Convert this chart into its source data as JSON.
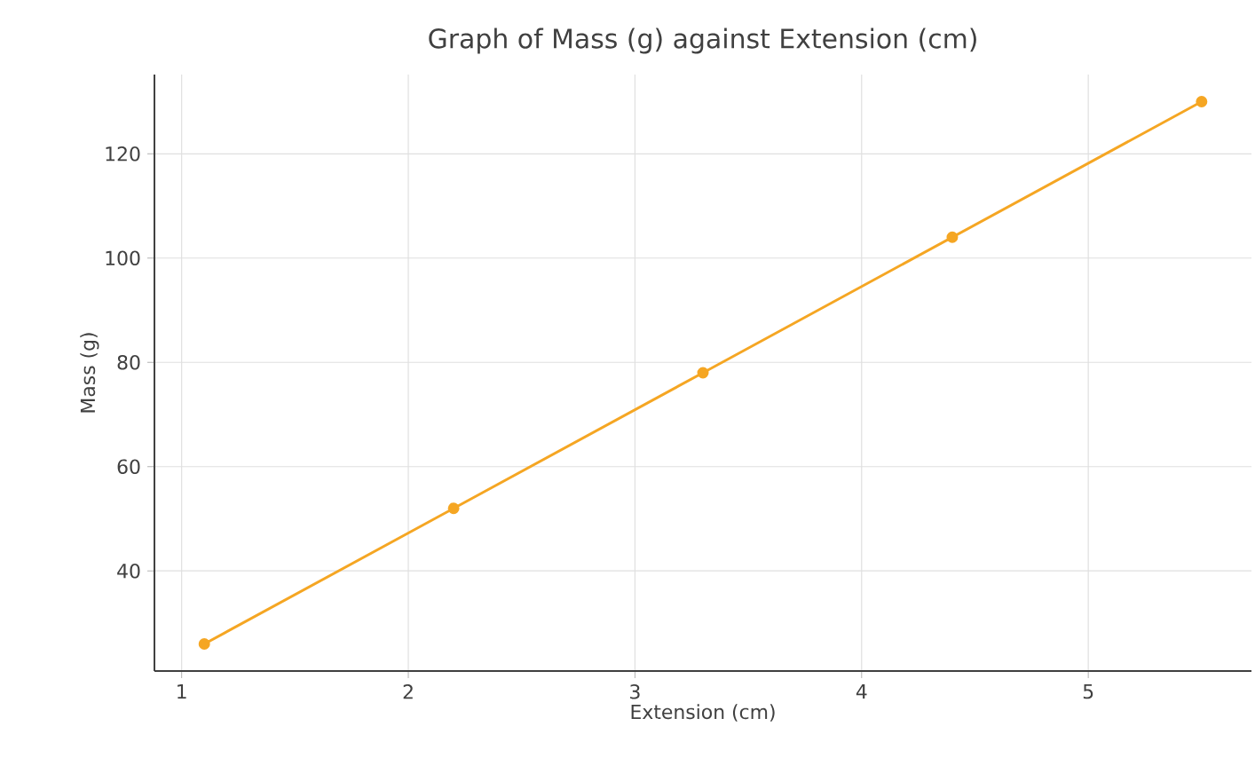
{
  "chart_data": {
    "type": "line",
    "title": "Graph of Mass (g) against Extension (cm)",
    "xlabel": "Extension (cm)",
    "ylabel": "Mass (g)",
    "x": [
      1.1,
      2.2,
      3.3,
      4.4,
      5.5
    ],
    "series": [
      {
        "color": "#f5a623",
        "values": [
          26,
          52,
          78,
          104,
          130
        ]
      }
    ],
    "xlim": [
      0.88,
      5.72
    ],
    "ylim": [
      20.8,
      135.2
    ],
    "xticks": [
      1,
      2,
      3,
      4,
      5
    ],
    "yticks": [
      40,
      60,
      80,
      100,
      120
    ],
    "grid": true,
    "marker": "circle",
    "line_style": "solid"
  }
}
